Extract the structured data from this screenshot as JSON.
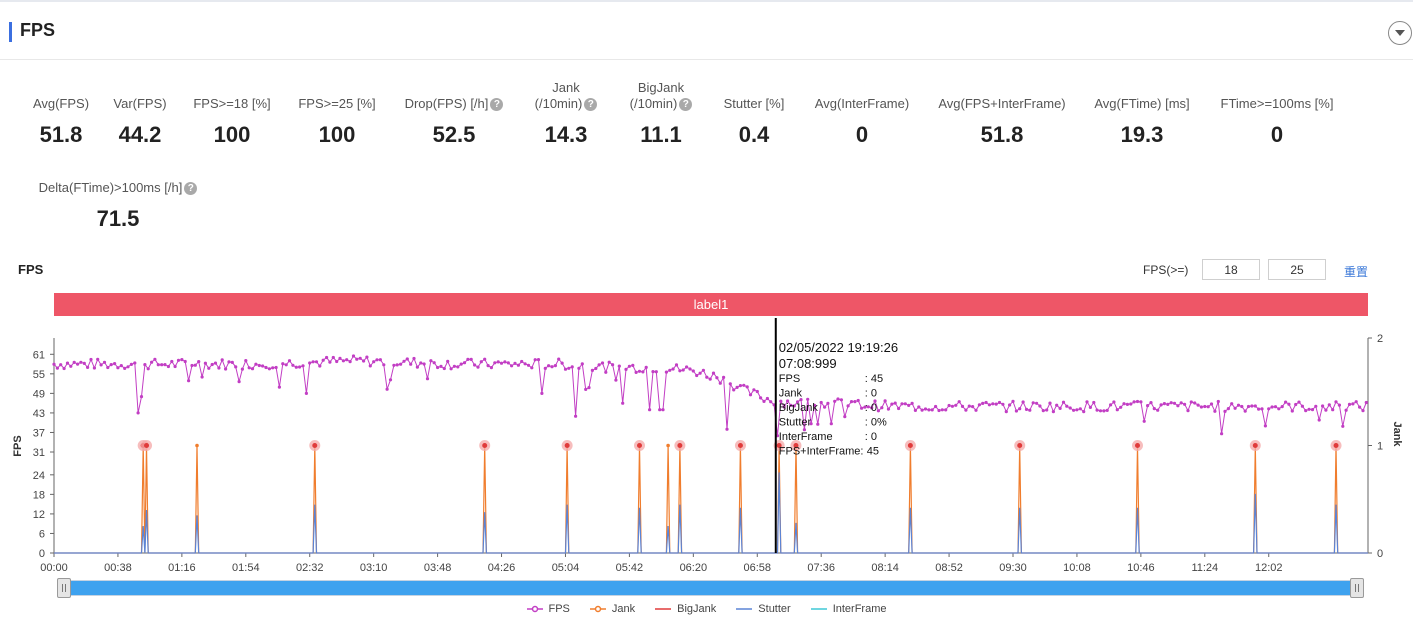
{
  "section": {
    "title": "FPS"
  },
  "metrics_row1": [
    {
      "label": "Avg(FPS)",
      "value": "51.8"
    },
    {
      "label": "Var(FPS)",
      "value": "44.2"
    },
    {
      "label": "FPS>=18 [%]",
      "value": "100"
    },
    {
      "label": "FPS>=25 [%]",
      "value": "100"
    },
    {
      "label": "Drop(FPS) [/h]",
      "value": "52.5"
    },
    {
      "label": "Jank",
      "label2": "(/10min)",
      "value": "14.3"
    },
    {
      "label": "BigJank",
      "label2": "(/10min)",
      "value": "11.1"
    },
    {
      "label": "Stutter [%]",
      "value": "0.4"
    },
    {
      "label": "Avg(InterFrame)",
      "value": "0"
    },
    {
      "label": "Avg(FPS+InterFrame)",
      "value": "51.8"
    },
    {
      "label": "Avg(FTime) [ms]",
      "value": "19.3"
    },
    {
      "label": "FTime>=100ms [%]",
      "value": "0"
    }
  ],
  "metrics_row2": [
    {
      "label": "Delta(FTime)>100ms [/h]",
      "value": "71.5"
    }
  ],
  "chart_section": {
    "title": "FPS",
    "fps_threshold_label": "FPS(>=)",
    "threshold_low": "18",
    "threshold_high": "25",
    "reset_label": "重置",
    "label_bar": "label1"
  },
  "tooltip": {
    "datetime": "02/05/2022 19:19:26",
    "time": "07:08:999",
    "rows": [
      {
        "name": "FPS",
        "value": ": 45"
      },
      {
        "name": "Jank",
        "value": ": 0"
      },
      {
        "name": "BigJank",
        "value": ": 0"
      },
      {
        "name": "Stutter",
        "value": ": 0%"
      },
      {
        "name": "InterFrame",
        "value": ": 0"
      },
      {
        "name": "FPS+InterFrame:",
        "value": "45"
      }
    ]
  },
  "chart_data": {
    "type": "line",
    "xlabel": "",
    "ylabel": "FPS",
    "y2label": "Jank",
    "y_ticks": [
      0,
      6,
      12,
      18,
      24,
      31,
      37,
      43,
      49,
      55,
      61
    ],
    "ylim": [
      0,
      66
    ],
    "y2_ticks": [
      0,
      1,
      2
    ],
    "y2lim": [
      0,
      2
    ],
    "xlim_seconds": [
      0,
      781
    ],
    "x_tick_labels": [
      "00:00",
      "00:38",
      "01:16",
      "01:54",
      "02:32",
      "03:10",
      "03:48",
      "04:26",
      "05:04",
      "05:42",
      "06:20",
      "06:58",
      "07:36",
      "08:14",
      "08:52",
      "09:30",
      "10:08",
      "10:46",
      "11:24",
      "12:02"
    ],
    "x_ticks_seconds": [
      0,
      38,
      76,
      114,
      152,
      190,
      228,
      266,
      304,
      342,
      380,
      418,
      456,
      494,
      532,
      570,
      608,
      646,
      684,
      722
    ],
    "cursor_time_seconds": 429,
    "series": [
      {
        "name": "FPS",
        "color": "#c23ec4",
        "x_seconds": [
          0,
          30,
          60,
          120,
          180,
          240,
          300,
          330,
          360,
          380,
          395,
          410,
          425,
          440,
          460,
          500,
          560,
          620,
          680,
          740,
          781
        ],
        "values": [
          58,
          58,
          58,
          58,
          59,
          58,
          58,
          57,
          57,
          56,
          54,
          50,
          47,
          46,
          46,
          45,
          45,
          45,
          45,
          45,
          45
        ],
        "drops": [
          {
            "x": 50,
            "y": 43
          },
          {
            "x": 52,
            "y": 48
          },
          {
            "x": 150,
            "y": 49
          },
          {
            "x": 290,
            "y": 49
          },
          {
            "x": 310,
            "y": 42
          },
          {
            "x": 338,
            "y": 46
          },
          {
            "x": 354,
            "y": 44
          },
          {
            "x": 361,
            "y": 44
          },
          {
            "x": 400,
            "y": 38
          },
          {
            "x": 430,
            "y": 36
          }
        ]
      },
      {
        "name": "Jank",
        "color": "#f07d2d",
        "x_seconds": [
          53,
          55,
          85,
          155,
          256,
          305,
          348,
          365,
          372,
          408,
          431,
          441,
          509,
          574,
          644,
          714,
          762
        ],
        "values": [
          1,
          1,
          1,
          1,
          1,
          1,
          1,
          1,
          1,
          1,
          1,
          1,
          1,
          1,
          1,
          1,
          1
        ]
      },
      {
        "name": "BigJank",
        "color": "#e03b3b",
        "x_seconds": [],
        "values": []
      },
      {
        "name": "Stutter",
        "color": "#5b84d6",
        "x_seconds": [
          53,
          55,
          85,
          155,
          256,
          305,
          348,
          365,
          372,
          408,
          431,
          441,
          509,
          574,
          644,
          714,
          762
        ],
        "values": [
          0.25,
          0.4,
          0.35,
          0.45,
          0.38,
          0.45,
          0.42,
          0.25,
          0.45,
          0.42,
          0.75,
          0.28,
          0.42,
          0.42,
          0.42,
          0.55,
          0.45
        ]
      },
      {
        "name": "InterFrame",
        "color": "#3fc8d6",
        "x_seconds": [],
        "values": []
      }
    ],
    "legend_placement": "bottom"
  }
}
